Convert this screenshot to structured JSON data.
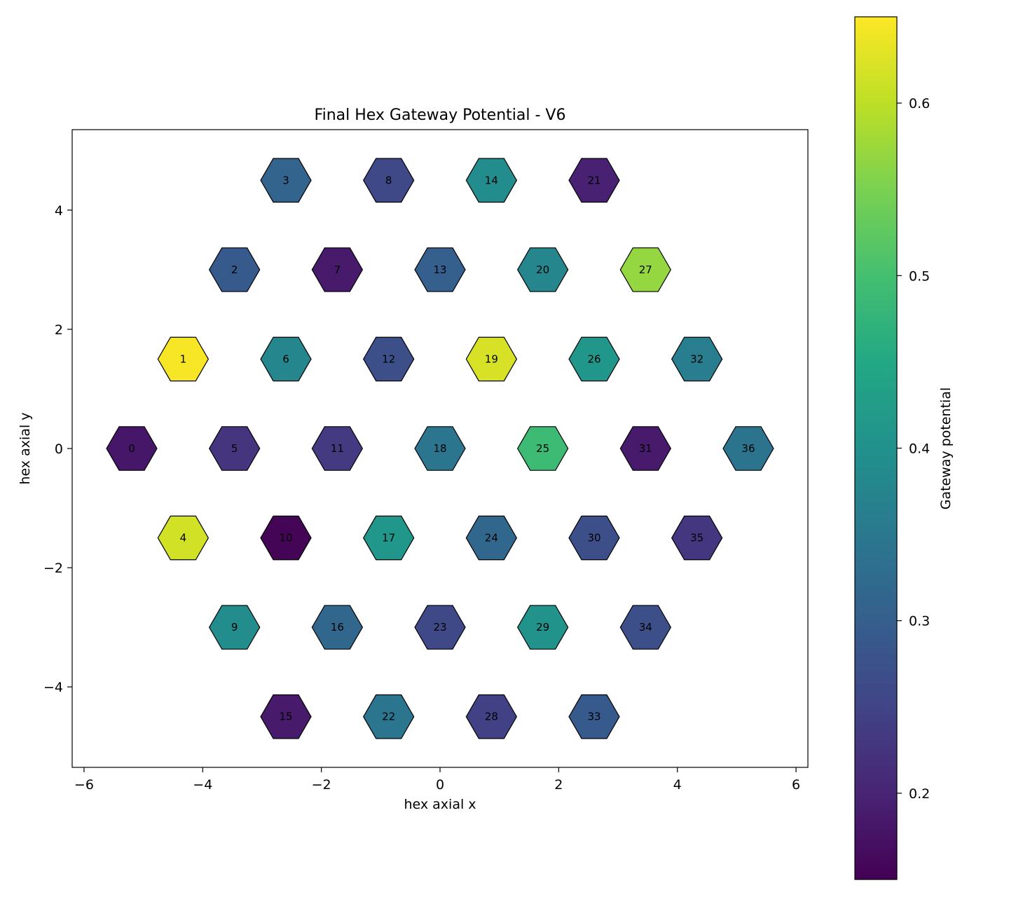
{
  "chart_data": {
    "type": "hexbin-scatter",
    "title": "Final Hex Gateway Potential - V6",
    "xlabel": "hex axial x",
    "ylabel": "hex axial y",
    "xlim": [
      -6.2,
      6.2
    ],
    "ylim": [
      -5.35,
      5.35
    ],
    "xticks": [
      -6,
      -4,
      -2,
      0,
      2,
      4,
      6
    ],
    "yticks": [
      -4,
      -2,
      0,
      2,
      4
    ],
    "colorbar": {
      "label": "Gateway potential",
      "range": [
        0.15,
        0.65
      ],
      "ticks": [
        0.2,
        0.3,
        0.4,
        0.5,
        0.6
      ],
      "colormap": "viridis"
    },
    "cells": [
      {
        "id": "0",
        "x": -5.196,
        "y": 0.0,
        "value": 0.18
      },
      {
        "id": "1",
        "x": -4.33,
        "y": 1.5,
        "value": 0.645
      },
      {
        "id": "2",
        "x": -3.464,
        "y": 3.0,
        "value": 0.29
      },
      {
        "id": "3",
        "x": -2.598,
        "y": 4.5,
        "value": 0.31
      },
      {
        "id": "4",
        "x": -4.33,
        "y": -1.5,
        "value": 0.615
      },
      {
        "id": "5",
        "x": -3.464,
        "y": 0.0,
        "value": 0.225
      },
      {
        "id": "6",
        "x": -2.598,
        "y": 1.5,
        "value": 0.38
      },
      {
        "id": "7",
        "x": -1.732,
        "y": 3.0,
        "value": 0.185
      },
      {
        "id": "8",
        "x": -0.866,
        "y": 4.5,
        "value": 0.26
      },
      {
        "id": "9",
        "x": -3.464,
        "y": -3.0,
        "value": 0.39
      },
      {
        "id": "10",
        "x": -2.598,
        "y": -1.5,
        "value": 0.155
      },
      {
        "id": "11",
        "x": -1.732,
        "y": 0.0,
        "value": 0.235
      },
      {
        "id": "12",
        "x": -0.866,
        "y": 1.5,
        "value": 0.27
      },
      {
        "id": "13",
        "x": 0.0,
        "y": 3.0,
        "value": 0.3
      },
      {
        "id": "14",
        "x": 0.866,
        "y": 4.5,
        "value": 0.39
      },
      {
        "id": "15",
        "x": -2.598,
        "y": -4.5,
        "value": 0.185
      },
      {
        "id": "16",
        "x": -1.732,
        "y": -3.0,
        "value": 0.315
      },
      {
        "id": "17",
        "x": -0.866,
        "y": -1.5,
        "value": 0.41
      },
      {
        "id": "18",
        "x": 0.0,
        "y": 0.0,
        "value": 0.345
      },
      {
        "id": "19",
        "x": 0.866,
        "y": 1.5,
        "value": 0.62
      },
      {
        "id": "20",
        "x": 1.732,
        "y": 3.0,
        "value": 0.38
      },
      {
        "id": "21",
        "x": 2.598,
        "y": 4.5,
        "value": 0.195
      },
      {
        "id": "22",
        "x": -0.866,
        "y": -4.5,
        "value": 0.345
      },
      {
        "id": "23",
        "x": 0.0,
        "y": -3.0,
        "value": 0.26
      },
      {
        "id": "24",
        "x": 0.866,
        "y": -1.5,
        "value": 0.315
      },
      {
        "id": "25",
        "x": 1.732,
        "y": 0.0,
        "value": 0.49
      },
      {
        "id": "26",
        "x": 2.598,
        "y": 1.5,
        "value": 0.41
      },
      {
        "id": "27",
        "x": 3.464,
        "y": 3.0,
        "value": 0.57
      },
      {
        "id": "28",
        "x": 0.866,
        "y": -4.5,
        "value": 0.245
      },
      {
        "id": "29",
        "x": 1.732,
        "y": -3.0,
        "value": 0.405
      },
      {
        "id": "30",
        "x": 2.598,
        "y": -1.5,
        "value": 0.27
      },
      {
        "id": "31",
        "x": 3.464,
        "y": 0.0,
        "value": 0.185
      },
      {
        "id": "32",
        "x": 4.33,
        "y": 1.5,
        "value": 0.36
      },
      {
        "id": "33",
        "x": 2.598,
        "y": -4.5,
        "value": 0.29
      },
      {
        "id": "34",
        "x": 3.464,
        "y": -3.0,
        "value": 0.27
      },
      {
        "id": "35",
        "x": 4.33,
        "y": -1.5,
        "value": 0.23
      },
      {
        "id": "36",
        "x": 5.196,
        "y": 0.0,
        "value": 0.34
      }
    ]
  }
}
